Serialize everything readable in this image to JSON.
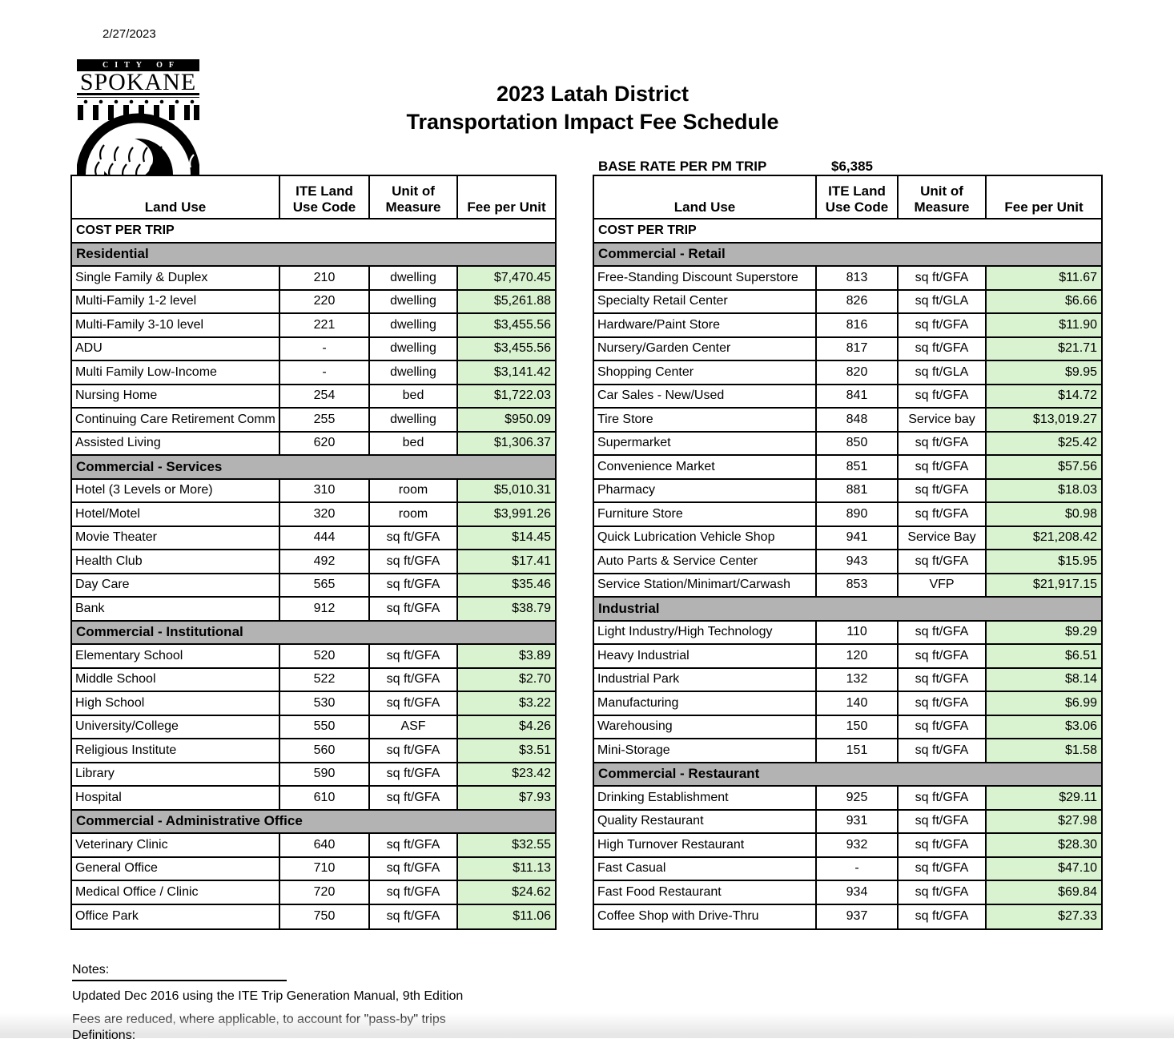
{
  "page": {
    "date": "2/27/2023",
    "title_line1": "2023 Latah District",
    "title_line2": "Transportation Impact Fee Schedule",
    "base_rate_label": "BASE RATE PER PM TRIP",
    "base_rate_value": "$6,385"
  },
  "logo": {
    "city_of": "CITY OF",
    "name": "SPOKANE"
  },
  "table_headers": [
    "Land Use",
    "ITE Land\nUse Code",
    "Unit of\nMeasure",
    "Fee per Unit"
  ],
  "cost_per_trip_label": "COST PER TRIP",
  "colors": {
    "section_bg": "#b3b3b3",
    "fee_bg": "#d9f2d0"
  },
  "left_table": {
    "sections": [
      {
        "title": "Residential",
        "rows": [
          [
            "Single Family & Duplex",
            "210",
            "dwelling",
            "$7,470.45"
          ],
          [
            "Multi-Family 1-2 level",
            "220",
            "dwelling",
            "$5,261.88"
          ],
          [
            "Multi-Family 3-10 level",
            "221",
            "dwelling",
            "$3,455.56"
          ],
          [
            "ADU",
            "-",
            "dwelling",
            "$3,455.56"
          ],
          [
            "Multi Family Low-Income",
            "-",
            "dwelling",
            "$3,141.42"
          ],
          [
            "Nursing Home",
            "254",
            "bed",
            "$1,722.03"
          ],
          [
            "Continuing Care Retirement Comm",
            "255",
            "dwelling",
            "$950.09"
          ],
          [
            "Assisted Living",
            "620",
            "bed",
            "$1,306.37"
          ]
        ]
      },
      {
        "title": "Commercial - Services",
        "rows": [
          [
            "Hotel (3 Levels or More)",
            "310",
            "room",
            "$5,010.31"
          ],
          [
            "Hotel/Motel",
            "320",
            "room",
            "$3,991.26"
          ],
          [
            "Movie Theater",
            "444",
            "sq ft/GFA",
            "$14.45"
          ],
          [
            "Health Club",
            "492",
            "sq ft/GFA",
            "$17.41"
          ],
          [
            "Day Care",
            "565",
            "sq ft/GFA",
            "$35.46"
          ],
          [
            "Bank",
            "912",
            "sq ft/GFA",
            "$38.79"
          ]
        ]
      },
      {
        "title": "Commercial - Institutional",
        "rows": [
          [
            "Elementary School",
            "520",
            "sq ft/GFA",
            "$3.89"
          ],
          [
            "Middle School",
            "522",
            "sq ft/GFA",
            "$2.70"
          ],
          [
            "High School",
            "530",
            "sq ft/GFA",
            "$3.22"
          ],
          [
            "University/College",
            "550",
            "ASF",
            "$4.26"
          ],
          [
            "Religious Institute",
            "560",
            "sq ft/GFA",
            "$3.51"
          ],
          [
            "Library",
            "590",
            "sq ft/GFA",
            "$23.42"
          ],
          [
            "Hospital",
            "610",
            "sq ft/GFA",
            "$7.93"
          ]
        ]
      },
      {
        "title": "Commercial - Administrative Office",
        "rows": [
          [
            "Veterinary Clinic",
            "640",
            "sq ft/GFA",
            "$32.55"
          ],
          [
            "General Office",
            "710",
            "sq ft/GFA",
            "$11.13"
          ],
          [
            "Medical Office / Clinic",
            "720",
            "sq ft/GFA",
            "$24.62"
          ],
          [
            "Office Park",
            "750",
            "sq ft/GFA",
            "$11.06"
          ]
        ]
      }
    ]
  },
  "right_table": {
    "sections": [
      {
        "title": "Commercial  - Retail",
        "rows": [
          [
            "Free-Standing Discount Superstore",
            "813",
            "sq ft/GFA",
            "$11.67"
          ],
          [
            "Specialty Retail Center",
            "826",
            "sq ft/GLA",
            "$6.66"
          ],
          [
            "Hardware/Paint Store",
            "816",
            "sq ft/GFA",
            "$11.90"
          ],
          [
            "Nursery/Garden Center",
            "817",
            "sq ft/GFA",
            "$21.71"
          ],
          [
            "Shopping Center",
            "820",
            "sq ft/GLA",
            "$9.95"
          ],
          [
            "Car Sales - New/Used",
            "841",
            "sq ft/GFA",
            "$14.72"
          ],
          [
            "Tire Store",
            "848",
            "Service bay",
            "$13,019.27"
          ],
          [
            "Supermarket",
            "850",
            "sq ft/GFA",
            "$25.42"
          ],
          [
            "Convenience Market",
            "851",
            "sq ft/GFA",
            "$57.56"
          ],
          [
            "Pharmacy",
            "881",
            "sq ft/GFA",
            "$18.03"
          ],
          [
            "Furniture Store",
            "890",
            "sq ft/GFA",
            "$0.98"
          ],
          [
            "Quick Lubrication Vehicle Shop",
            "941",
            "Service Bay",
            "$21,208.42"
          ],
          [
            "Auto Parts & Service Center",
            "943",
            "sq ft/GFA",
            "$15.95"
          ],
          [
            "Service Station/Minimart/Carwash",
            "853",
            "VFP",
            "$21,917.15"
          ]
        ]
      },
      {
        "title": "Industrial",
        "rows": [
          [
            "Light Industry/High Technology",
            "110",
            "sq ft/GFA",
            "$9.29"
          ],
          [
            "Heavy Industrial",
            "120",
            "sq ft/GFA",
            "$6.51"
          ],
          [
            "Industrial Park",
            "132",
            "sq ft/GFA",
            "$8.14"
          ],
          [
            "Manufacturing",
            "140",
            "sq ft/GFA",
            "$6.99"
          ],
          [
            "Warehousing",
            "150",
            "sq ft/GFA",
            "$3.06"
          ],
          [
            "Mini-Storage",
            "151",
            "sq ft/GFA",
            "$1.58"
          ]
        ]
      },
      {
        "title": "Commercial - Restaurant",
        "rows": [
          [
            "Drinking Establishment",
            "925",
            "sq ft/GFA",
            "$29.11"
          ],
          [
            "Quality Restaurant",
            "931",
            "sq ft/GFA",
            "$27.98"
          ],
          [
            "High Turnover Restaurant",
            "932",
            "sq ft/GFA",
            "$28.30"
          ],
          [
            "Fast Casual",
            "-",
            "sq ft/GFA",
            "$47.10"
          ],
          [
            "Fast Food Restaurant",
            "934",
            "sq ft/GFA",
            "$69.84"
          ],
          [
            "Coffee Shop with Drive-Thru",
            "937",
            "sq ft/GFA",
            "$27.33"
          ]
        ]
      }
    ]
  },
  "notes": {
    "heading": "Notes:",
    "lines": [
      "Updated Dec 2016 using the ITE Trip Generation Manual, 9th Edition",
      "Fees are reduced, where applicable, to account for \"pass-by\" trips"
    ],
    "definitions_heading": "Definitions:"
  }
}
